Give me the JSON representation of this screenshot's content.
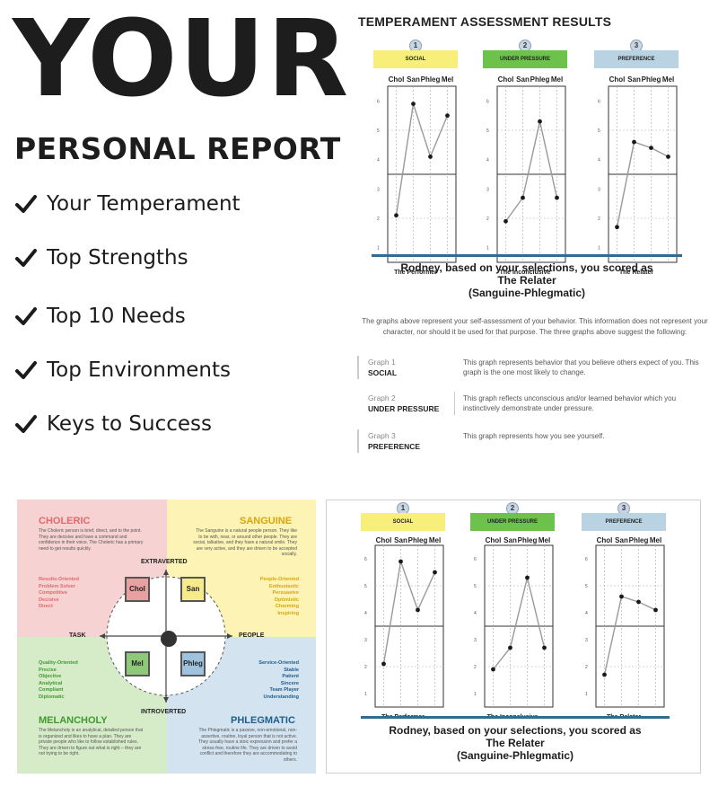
{
  "hero": {
    "title": "YOUR",
    "subtitle": "PERSONAL REPORT",
    "checklist": [
      "Your Temperament",
      "Top Strengths",
      "Top 10 Needs",
      "Top Environments",
      "Keys to Success"
    ]
  },
  "results": {
    "title": "TEMPERAMENT ASSESSMENT RESULTS",
    "score_line1": "Rodney, based on your selections, you scored as",
    "score_line2": "The Relater",
    "score_line3": "(Sanguine-Phlegmatic)",
    "description": "The graphs above represent your self-assessment of your behavior. This information does not represent your character, nor should it be used for that purpose. The three graphs above suggest the following:",
    "definitions": [
      {
        "label": "Graph 1",
        "name": "SOCIAL",
        "text": "This graph represents behavior that you believe others expect of you. This graph is the one most likely to change."
      },
      {
        "label": "Graph 2",
        "name": "UNDER PRESSURE",
        "text": "This graph reflects unconscious and/or learned behavior which you instinctively demonstrate under pressure."
      },
      {
        "label": "Graph 3",
        "name": "PREFERENCE",
        "text": "This graph represents how you see yourself."
      }
    ]
  },
  "graphs": {
    "columns": [
      "Chol",
      "San",
      "Phleg",
      "Mel"
    ],
    "y_ticks": [
      "6",
      "5",
      "4",
      "3",
      "2",
      "1"
    ],
    "colors": {
      "social": "#f7ef7a",
      "under_pressure": "#6cc24a",
      "preference": "#b9d3e3",
      "line": "#999999",
      "dot": "#1a1a1a"
    }
  },
  "chart_data": [
    {
      "type": "line",
      "number": "1",
      "header": "SOCIAL",
      "footer": "The Performer",
      "categories": [
        "Chol",
        "San",
        "Phleg",
        "Mel"
      ],
      "values": [
        2.1,
        5.9,
        4.1,
        5.5
      ],
      "ylim": [
        0.5,
        6.5
      ]
    },
    {
      "type": "line",
      "number": "2",
      "header": "UNDER PRESSURE",
      "footer": "The Inconclusive",
      "categories": [
        "Chol",
        "San",
        "Phleg",
        "Mel"
      ],
      "values": [
        1.9,
        2.7,
        5.3,
        2.7
      ],
      "ylim": [
        0.5,
        6.5
      ]
    },
    {
      "type": "line",
      "number": "3",
      "header": "PREFERENCE",
      "footer": "The Relater",
      "categories": [
        "Chol",
        "San",
        "Phleg",
        "Mel"
      ],
      "values": [
        1.7,
        4.6,
        4.4,
        4.1
      ],
      "ylim": [
        0.5,
        6.5
      ]
    }
  ],
  "quadrant": {
    "choleric": {
      "name": "CHOLERIC",
      "desc": "The Choleric person is brief, direct, and to the point. They are decisive and have a command and confidence in their voice. The Choleric has a primary need to get results quickly.",
      "traits": [
        "Results-Oriented",
        "Problem Solver",
        "Competitive",
        "Decisive",
        "Direct"
      ],
      "color": "#e06a6a"
    },
    "sanguine": {
      "name": "SANGUINE",
      "desc": "The Sanguine is a natural people person. They like to be with, near, or around other people. They are social, talkative, and they have a natural smile. They are very active, and they are driven to be accepted socially.",
      "traits": [
        "People-Oriented",
        "Enthusiastic",
        "Persuasive",
        "Optimistic",
        "Charming",
        "Inspiring"
      ],
      "color": "#d9a50c"
    },
    "melancholy": {
      "name": "MELANCHOLY",
      "desc": "The Melancholy is an analytical, detailed person that is organized and likes to have a plan. They are private people who like to follow established rules. They are driven to figure out what is right – they are not trying to be right.",
      "traits": [
        "Quality-Oriented",
        "Precise",
        "Objective",
        "Analytical",
        "Compliant",
        "Diplomatic"
      ],
      "color": "#3e9a2f"
    },
    "phlegmatic": {
      "name": "PHLEGMATIC",
      "desc": "The Phlegmatic is a passive, non-emotional, non-assertive, routine, loyal person that is not active. They usually have a stoic expression and prefer a stress-free, routine life. They are driven to avoid conflict and therefore they are accommodating to others.",
      "traits": [
        "Service-Oriented",
        "Stable",
        "Patient",
        "Sincere",
        "Team Player",
        "Understanding"
      ],
      "color": "#1f5d8e"
    },
    "axes": {
      "top": "EXTRAVERTED",
      "bottom": "INTROVERTED",
      "left": "TASK",
      "right": "PEOPLE"
    },
    "boxes": {
      "chol": "Chol",
      "san": "San",
      "mel": "Mel",
      "phleg": "Phleg"
    }
  }
}
